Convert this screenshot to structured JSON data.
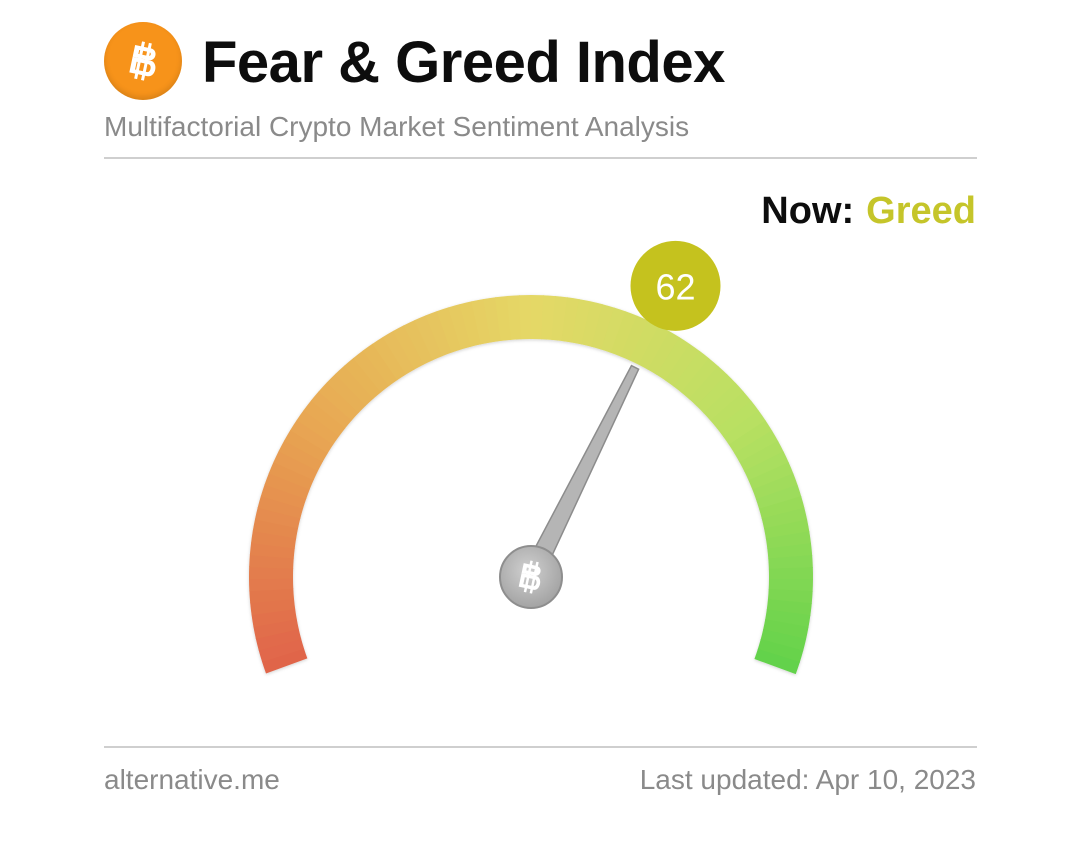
{
  "header": {
    "title": "Fear & Greed Index",
    "subtitle": "Multifactorial Crypto Market Sentiment Analysis",
    "logo_icon": "bitcoin-icon",
    "logo_color": "#f7931a"
  },
  "status": {
    "now_label": "Now:",
    "classification": "Greed",
    "classification_color": "#c5c52a"
  },
  "chart_data": {
    "type": "gauge",
    "value": 62,
    "value_label": "62",
    "min": 0,
    "max": 100,
    "colors": [
      "#e0644a",
      "#e8a752",
      "#e5d866",
      "#b8e062",
      "#62d24a"
    ],
    "badge_color": "#c5c21e",
    "center_icon": "bitcoin-icon"
  },
  "footer": {
    "source": "alternative.me",
    "last_updated": "Last updated: Apr 10, 2023"
  }
}
